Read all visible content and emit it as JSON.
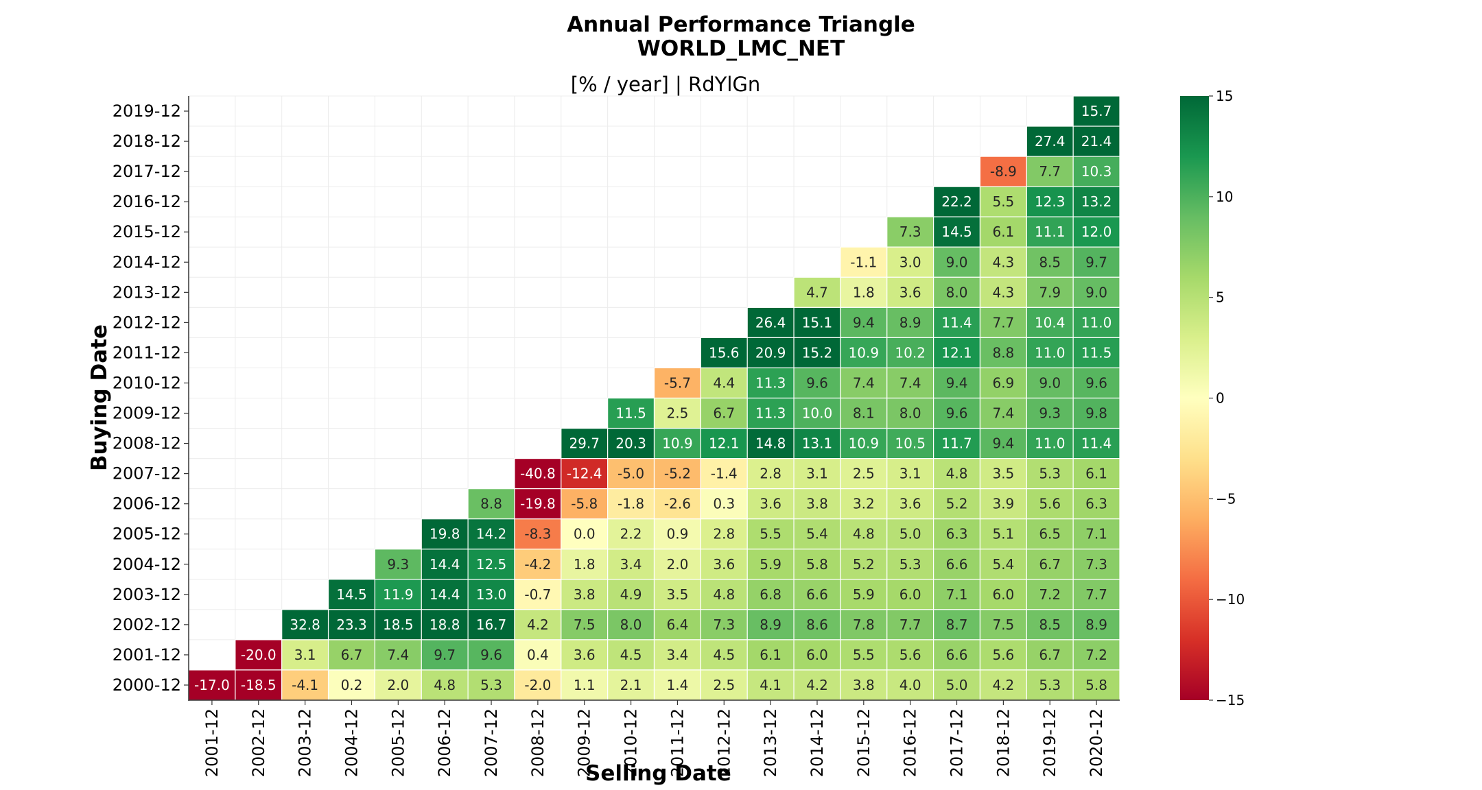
{
  "chart_data": {
    "type": "heatmap",
    "title": "Annual Performance Triangle",
    "title_line2": "WORLD_LMC_NET",
    "subtitle": "[% / year] | RdYlGn",
    "xlabel": "Selling Date",
    "ylabel": "Buying Date",
    "colormap": "RdYlGn",
    "vmin": -15,
    "vmax": 15,
    "colorbar_ticks": [
      "15",
      "10",
      "5",
      "0",
      "−5",
      "−10",
      "−15"
    ],
    "colorbar_tick_values": [
      15,
      10,
      5,
      0,
      -5,
      -10,
      -15
    ],
    "x_categories": [
      "2001-12",
      "2002-12",
      "2003-12",
      "2004-12",
      "2005-12",
      "2006-12",
      "2007-12",
      "2008-12",
      "2009-12",
      "2010-12",
      "2011-12",
      "2012-12",
      "2013-12",
      "2014-12",
      "2015-12",
      "2016-12",
      "2017-12",
      "2018-12",
      "2019-12",
      "2020-12"
    ],
    "y_categories_top_to_bottom": [
      "2019-12",
      "2018-12",
      "2017-12",
      "2016-12",
      "2015-12",
      "2014-12",
      "2013-12",
      "2012-12",
      "2011-12",
      "2010-12",
      "2009-12",
      "2008-12",
      "2007-12",
      "2006-12",
      "2005-12",
      "2004-12",
      "2003-12",
      "2002-12",
      "2001-12",
      "2000-12"
    ],
    "rows": [
      {
        "buy": "2019-12",
        "values": [
          null,
          null,
          null,
          null,
          null,
          null,
          null,
          null,
          null,
          null,
          null,
          null,
          null,
          null,
          null,
          null,
          null,
          null,
          null,
          "15.7"
        ]
      },
      {
        "buy": "2018-12",
        "values": [
          null,
          null,
          null,
          null,
          null,
          null,
          null,
          null,
          null,
          null,
          null,
          null,
          null,
          null,
          null,
          null,
          null,
          null,
          "27.4",
          "21.4"
        ]
      },
      {
        "buy": "2017-12",
        "values": [
          null,
          null,
          null,
          null,
          null,
          null,
          null,
          null,
          null,
          null,
          null,
          null,
          null,
          null,
          null,
          null,
          null,
          "-8.9",
          "7.7",
          "10.3"
        ]
      },
      {
        "buy": "2016-12",
        "values": [
          null,
          null,
          null,
          null,
          null,
          null,
          null,
          null,
          null,
          null,
          null,
          null,
          null,
          null,
          null,
          null,
          "22.2",
          "5.5",
          "12.3",
          "13.2"
        ]
      },
      {
        "buy": "2015-12",
        "values": [
          null,
          null,
          null,
          null,
          null,
          null,
          null,
          null,
          null,
          null,
          null,
          null,
          null,
          null,
          null,
          "7.3",
          "14.5",
          "6.1",
          "11.1",
          "12.0"
        ]
      },
      {
        "buy": "2014-12",
        "values": [
          null,
          null,
          null,
          null,
          null,
          null,
          null,
          null,
          null,
          null,
          null,
          null,
          null,
          null,
          "-1.1",
          "3.0",
          "9.0",
          "4.3",
          "8.5",
          "9.7"
        ]
      },
      {
        "buy": "2013-12",
        "values": [
          null,
          null,
          null,
          null,
          null,
          null,
          null,
          null,
          null,
          null,
          null,
          null,
          null,
          "4.7",
          "1.8",
          "3.6",
          "8.0",
          "4.3",
          "7.9",
          "9.0"
        ]
      },
      {
        "buy": "2012-12",
        "values": [
          null,
          null,
          null,
          null,
          null,
          null,
          null,
          null,
          null,
          null,
          null,
          null,
          "26.4",
          "15.1",
          "9.4",
          "8.9",
          "11.4",
          "7.7",
          "10.4",
          "11.0"
        ]
      },
      {
        "buy": "2011-12",
        "values": [
          null,
          null,
          null,
          null,
          null,
          null,
          null,
          null,
          null,
          null,
          null,
          "15.6",
          "20.9",
          "15.2",
          "10.9",
          "10.2",
          "12.1",
          "8.8",
          "11.0",
          "11.5"
        ]
      },
      {
        "buy": "2010-12",
        "values": [
          null,
          null,
          null,
          null,
          null,
          null,
          null,
          null,
          null,
          null,
          "-5.7",
          "4.4",
          "11.3",
          "9.6",
          "7.4",
          "7.4",
          "9.4",
          "6.9",
          "9.0",
          "9.6"
        ]
      },
      {
        "buy": "2009-12",
        "values": [
          null,
          null,
          null,
          null,
          null,
          null,
          null,
          null,
          null,
          "11.5",
          "2.5",
          "6.7",
          "11.3",
          "10.0",
          "8.1",
          "8.0",
          "9.6",
          "7.4",
          "9.3",
          "9.8"
        ]
      },
      {
        "buy": "2008-12",
        "values": [
          null,
          null,
          null,
          null,
          null,
          null,
          null,
          null,
          "29.7",
          "20.3",
          "10.9",
          "12.1",
          "14.8",
          "13.1",
          "10.9",
          "10.5",
          "11.7",
          "9.4",
          "11.0",
          "11.4"
        ]
      },
      {
        "buy": "2007-12",
        "values": [
          null,
          null,
          null,
          null,
          null,
          null,
          null,
          "-40.8",
          "-12.4",
          "-5.0",
          "-5.2",
          "-1.4",
          "2.8",
          "3.1",
          "2.5",
          "3.1",
          "4.8",
          "3.5",
          "5.3",
          "6.1"
        ]
      },
      {
        "buy": "2006-12",
        "values": [
          null,
          null,
          null,
          null,
          null,
          null,
          "8.8",
          "-19.8",
          "-5.8",
          "-1.8",
          "-2.6",
          "0.3",
          "3.6",
          "3.8",
          "3.2",
          "3.6",
          "5.2",
          "3.9",
          "5.6",
          "6.3"
        ]
      },
      {
        "buy": "2005-12",
        "values": [
          null,
          null,
          null,
          null,
          null,
          "19.8",
          "14.2",
          "-8.3",
          "0.0",
          "2.2",
          "0.9",
          "2.8",
          "5.5",
          "5.4",
          "4.8",
          "5.0",
          "6.3",
          "5.1",
          "6.5",
          "7.1"
        ]
      },
      {
        "buy": "2004-12",
        "values": [
          null,
          null,
          null,
          null,
          "9.3",
          "14.4",
          "12.5",
          "-4.2",
          "1.8",
          "3.4",
          "2.0",
          "3.6",
          "5.9",
          "5.8",
          "5.2",
          "5.3",
          "6.6",
          "5.4",
          "6.7",
          "7.3"
        ]
      },
      {
        "buy": "2003-12",
        "values": [
          null,
          null,
          null,
          "14.5",
          "11.9",
          "14.4",
          "13.0",
          "-0.7",
          "3.8",
          "4.9",
          "3.5",
          "4.8",
          "6.8",
          "6.6",
          "5.9",
          "6.0",
          "7.1",
          "6.0",
          "7.2",
          "7.7"
        ]
      },
      {
        "buy": "2002-12",
        "values": [
          null,
          null,
          "32.8",
          "23.3",
          "18.5",
          "18.8",
          "16.7",
          "4.2",
          "7.5",
          "8.0",
          "6.4",
          "7.3",
          "8.9",
          "8.6",
          "7.8",
          "7.7",
          "8.7",
          "7.5",
          "8.5",
          "8.9"
        ]
      },
      {
        "buy": "2001-12",
        "values": [
          null,
          "-20.0",
          "3.1",
          "6.7",
          "7.4",
          "9.7",
          "9.6",
          "0.4",
          "3.6",
          "4.5",
          "3.4",
          "4.5",
          "6.1",
          "6.0",
          "5.5",
          "5.6",
          "6.6",
          "5.6",
          "6.7",
          "7.2"
        ]
      },
      {
        "buy": "2000-12",
        "values": [
          "-17.0",
          "-18.5",
          "-4.1",
          "0.2",
          "2.0",
          "4.8",
          "5.3",
          "-2.0",
          "1.1",
          "2.1",
          "1.4",
          "2.5",
          "4.1",
          "4.2",
          "3.8",
          "4.0",
          "5.0",
          "4.2",
          "5.3",
          "5.8"
        ]
      }
    ]
  }
}
